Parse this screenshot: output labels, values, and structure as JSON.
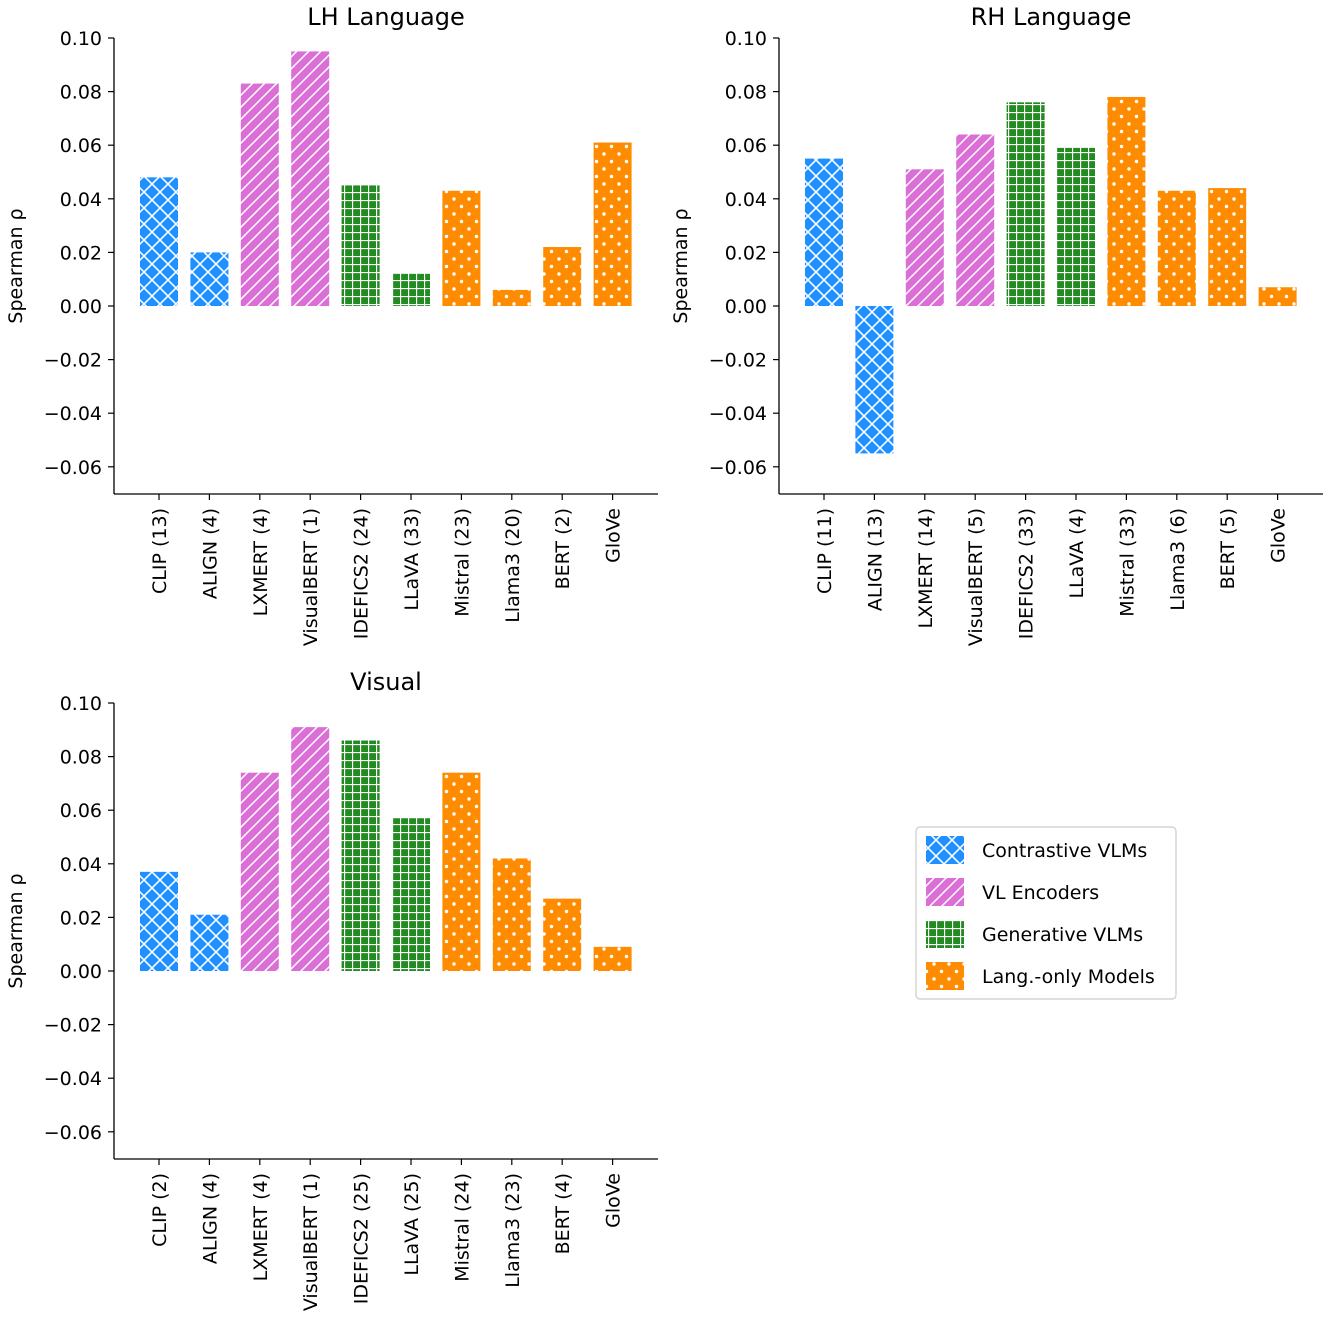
{
  "legend": {
    "entries": [
      {
        "label": "Contrastive VLMs",
        "group": "contrastive"
      },
      {
        "label": "VL Encoders",
        "group": "encoder"
      },
      {
        "label": "Generative VLMs",
        "group": "generative"
      },
      {
        "label": "Lang.-only Models",
        "group": "langonly"
      }
    ]
  },
  "groups": {
    "contrastive": {
      "color": "#1e90ff",
      "pattern": "crosshatch"
    },
    "encoder": {
      "color": "#da70d6",
      "pattern": "diagonal"
    },
    "generative": {
      "color": "#228b22",
      "pattern": "grid"
    },
    "langonly": {
      "color": "#ff8c00",
      "pattern": "dots"
    }
  },
  "chart_data": [
    {
      "type": "bar",
      "title": "LH Language",
      "ylabel": "Spearman ρ",
      "ylim": [
        -0.07,
        0.1
      ],
      "yticks": [
        -0.06,
        -0.04,
        -0.02,
        0.0,
        0.02,
        0.04,
        0.06,
        0.08,
        0.1
      ],
      "ytick_labels": [
        "−0.06",
        "−0.04",
        "−0.02",
        "0.00",
        "0.02",
        "0.04",
        "0.06",
        "0.08",
        "0.10"
      ],
      "categories": [
        "CLIP (13)",
        "ALIGN (4)",
        "LXMERT (4)",
        "VisualBERT (1)",
        "IDEFICS2 (24)",
        "LLaVA (33)",
        "Mistral (23)",
        "Llama3 (20)",
        "BERT (2)",
        "GloVe"
      ],
      "groups": [
        "contrastive",
        "contrastive",
        "encoder",
        "encoder",
        "generative",
        "generative",
        "langonly",
        "langonly",
        "langonly",
        "langonly"
      ],
      "values": [
        0.048,
        0.02,
        0.083,
        0.095,
        0.045,
        0.012,
        0.043,
        0.006,
        0.022,
        0.061
      ]
    },
    {
      "type": "bar",
      "title": "RH Language",
      "ylabel": "Spearman ρ",
      "ylim": [
        -0.07,
        0.1
      ],
      "yticks": [
        -0.06,
        -0.04,
        -0.02,
        0.0,
        0.02,
        0.04,
        0.06,
        0.08,
        0.1
      ],
      "ytick_labels": [
        "−0.06",
        "−0.04",
        "−0.02",
        "0.00",
        "0.02",
        "0.04",
        "0.06",
        "0.08",
        "0.10"
      ],
      "categories": [
        "CLIP (11)",
        "ALIGN (13)",
        "LXMERT (14)",
        "VisualBERT (5)",
        "IDEFICS2 (33)",
        "LLaVA (4)",
        "Mistral (33)",
        "Llama3 (6)",
        "BERT (5)",
        "GloVe"
      ],
      "groups": [
        "contrastive",
        "contrastive",
        "encoder",
        "encoder",
        "generative",
        "generative",
        "langonly",
        "langonly",
        "langonly",
        "langonly"
      ],
      "values": [
        0.055,
        -0.055,
        0.051,
        0.064,
        0.076,
        0.059,
        0.078,
        0.043,
        0.044,
        0.007
      ]
    },
    {
      "type": "bar",
      "title": "Visual",
      "ylabel": "Spearman ρ",
      "ylim": [
        -0.07,
        0.1
      ],
      "yticks": [
        -0.06,
        -0.04,
        -0.02,
        0.0,
        0.02,
        0.04,
        0.06,
        0.08,
        0.1
      ],
      "ytick_labels": [
        "−0.06",
        "−0.04",
        "−0.02",
        "0.00",
        "0.02",
        "0.04",
        "0.06",
        "0.08",
        "0.10"
      ],
      "categories": [
        "CLIP (2)",
        "ALIGN (4)",
        "LXMERT (4)",
        "VisualBERT (1)",
        "IDEFICS2 (25)",
        "LLaVA (25)",
        "Mistral (24)",
        "Llama3 (23)",
        "BERT (4)",
        "GloVe"
      ],
      "groups": [
        "contrastive",
        "contrastive",
        "encoder",
        "encoder",
        "generative",
        "generative",
        "langonly",
        "langonly",
        "langonly",
        "langonly"
      ],
      "values": [
        0.037,
        0.021,
        0.074,
        0.091,
        0.086,
        0.057,
        0.074,
        0.042,
        0.027,
        0.009
      ]
    }
  ]
}
